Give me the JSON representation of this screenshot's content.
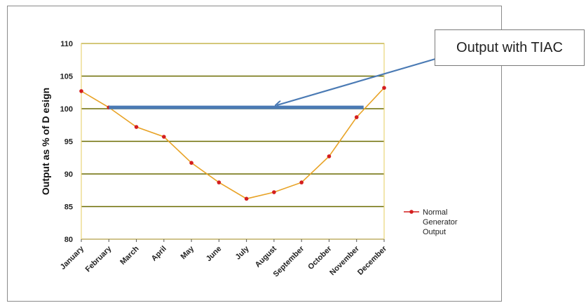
{
  "chart_data": {
    "type": "line",
    "categories": [
      "January",
      "February",
      "March",
      "April",
      "May",
      "June",
      "July",
      "August",
      "September",
      "October",
      "November",
      "December"
    ],
    "series": [
      {
        "name": "Normal Generator Output",
        "values": [
          102.7,
          100.2,
          97.2,
          95.7,
          91.7,
          88.7,
          86.2,
          87.2,
          88.7,
          92.7,
          98.7,
          103.2
        ]
      }
    ],
    "reference_line": {
      "label": "Output with TIAC",
      "value": 100.2,
      "from": "February",
      "to": "November"
    },
    "ylabel": "Output as % of D esign",
    "xlabel": "",
    "ylim": [
      80,
      110
    ],
    "yticks": [
      80,
      85,
      90,
      95,
      100,
      105,
      110
    ],
    "grid": true,
    "legend": "right",
    "colors": {
      "series": "#e8a326",
      "markers": "#d41e1e",
      "reference": "#4a7ab4",
      "grid": "#6b6b00",
      "plot_bg": "#ffffff",
      "plot_border": "#e8d478"
    }
  }
}
